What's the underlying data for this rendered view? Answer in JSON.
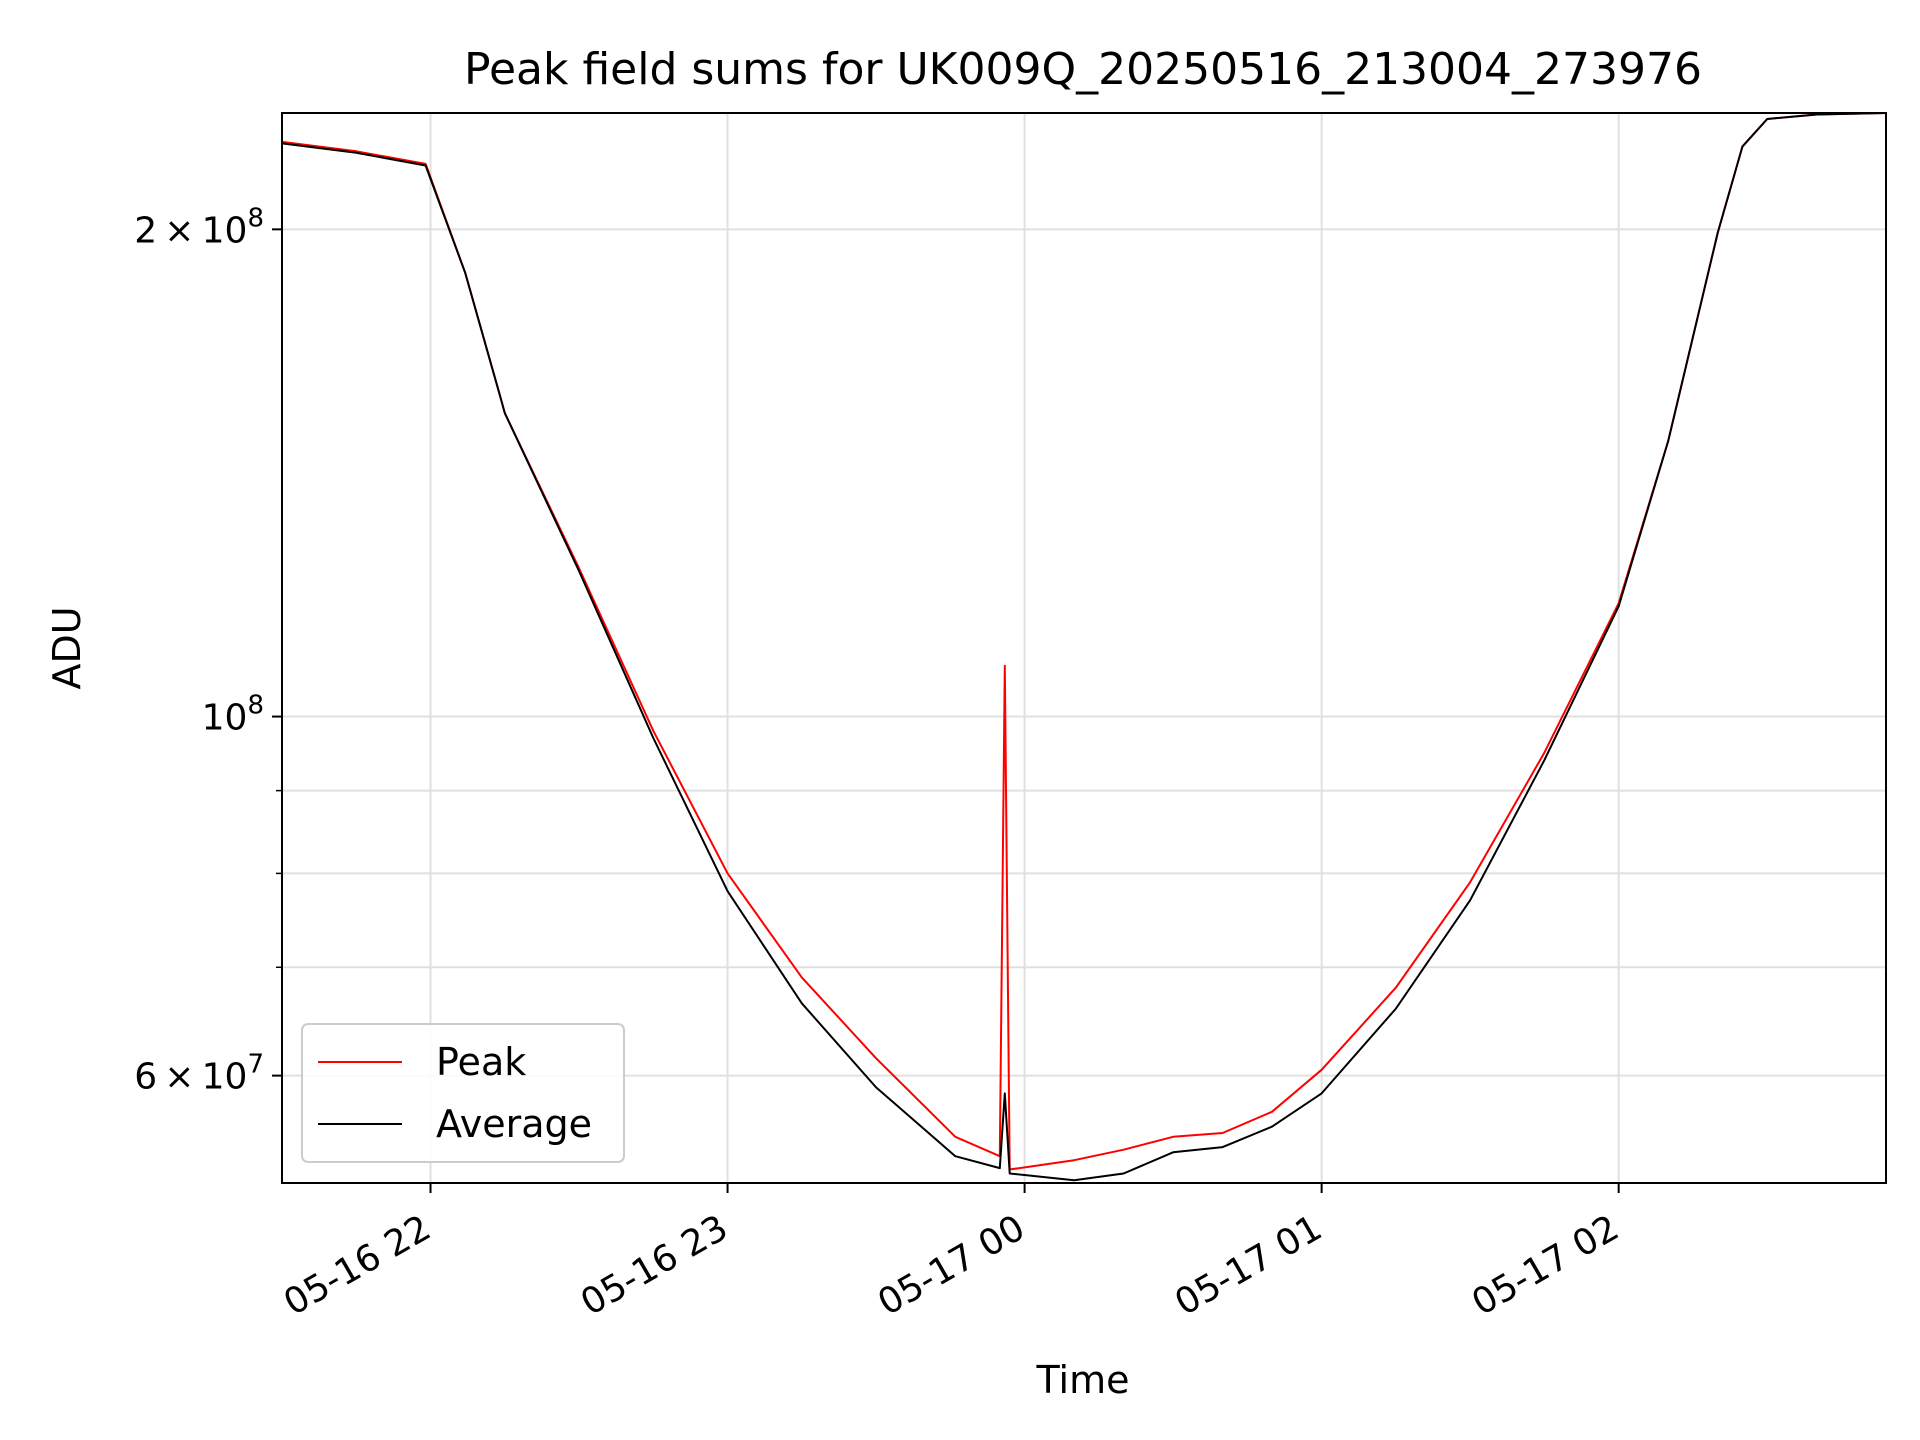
{
  "chart_data": {
    "type": "line",
    "title": "Peak field sums for UK009Q_20250516_213004_273976",
    "xlabel": "Time",
    "ylabel": "ADU",
    "y_scale": "log",
    "grid": true,
    "legend_placement": "lower-left",
    "xlim": [
      "2025-05-16 21:30",
      "2025-05-17 02:54"
    ],
    "ylim": [
      51500000,
      236000000
    ],
    "x_ticks": [
      {
        "t": "2025-05-16 22:00",
        "label": "05-16 22"
      },
      {
        "t": "2025-05-16 23:00",
        "label": "05-16 23"
      },
      {
        "t": "2025-05-17 00:00",
        "label": "05-17 00"
      },
      {
        "t": "2025-05-17 01:00",
        "label": "05-17 01"
      },
      {
        "t": "2025-05-17 02:00",
        "label": "05-17 02"
      }
    ],
    "y_major_ticks": [
      {
        "value": 60000000,
        "mant": "6",
        "exp": "7",
        "label": "6 × 10^7"
      },
      {
        "value": 100000000,
        "mant": "",
        "exp": "8",
        "label": "10^8"
      },
      {
        "value": 200000000,
        "mant": "2",
        "exp": "8",
        "label": "2 × 10^8"
      }
    ],
    "y_minor_ticks": [
      70000000,
      80000000,
      90000000
    ],
    "colors": {
      "peak": "#ff0000",
      "average": "#000000",
      "grid": "#e0e0e0"
    },
    "legend": [
      {
        "name": "Peak",
        "color": "#ff0000"
      },
      {
        "name": "Average",
        "color": "#000000"
      }
    ],
    "series": [
      {
        "name": "Average",
        "x": [
          "2025-05-16 21:30",
          "2025-05-16 21:45",
          "2025-05-16 21:59",
          "2025-05-16 22:07",
          "2025-05-16 22:14",
          "2025-05-16 22:15",
          "2025-05-16 22:30",
          "2025-05-16 22:45",
          "2025-05-16 23:00",
          "2025-05-16 23:15",
          "2025-05-16 23:30",
          "2025-05-16 23:46",
          "2025-05-16 23:55",
          "2025-05-16 23:56",
          "2025-05-16 23:57",
          "2025-05-17 00:10",
          "2025-05-17 00:20",
          "2025-05-17 00:30",
          "2025-05-17 00:40",
          "2025-05-17 00:50",
          "2025-05-17 01:00",
          "2025-05-17 01:15",
          "2025-05-17 01:30",
          "2025-05-17 01:45",
          "2025-05-17 02:00",
          "2025-05-17 02:10",
          "2025-05-17 02:20",
          "2025-05-17 02:25",
          "2025-05-17 02:30",
          "2025-05-17 02:40",
          "2025-05-17 02:54"
        ],
        "y": [
          226000000,
          223000000,
          219000000,
          188000000,
          158000000,
          154000000,
          123000000,
          97000000,
          78000000,
          66500000,
          59000000,
          53500000,
          52600000,
          58500000,
          52200000,
          51700000,
          52200000,
          53800000,
          54200000,
          55800000,
          58500000,
          66000000,
          77000000,
          94000000,
          117000000,
          148000000,
          199000000,
          225000000,
          234000000,
          235500000,
          236000000
        ]
      },
      {
        "name": "Peak",
        "x": [
          "2025-05-16 21:30",
          "2025-05-16 21:45",
          "2025-05-16 21:59",
          "2025-05-16 22:07",
          "2025-05-16 22:14",
          "2025-05-16 22:15",
          "2025-05-16 22:30",
          "2025-05-16 22:45",
          "2025-05-16 23:00",
          "2025-05-16 23:15",
          "2025-05-16 23:30",
          "2025-05-16 23:46",
          "2025-05-16 23:55",
          "2025-05-16 23:56",
          "2025-05-16 23:57",
          "2025-05-17 00:10",
          "2025-05-17 00:20",
          "2025-05-17 00:30",
          "2025-05-17 00:40",
          "2025-05-17 00:50",
          "2025-05-17 01:00",
          "2025-05-17 01:15",
          "2025-05-17 01:30",
          "2025-05-17 01:45",
          "2025-05-17 02:00",
          "2025-05-17 02:10",
          "2025-05-17 02:20",
          "2025-05-17 02:25",
          "2025-05-17 02:30",
          "2025-05-17 02:40",
          "2025-05-17 02:54"
        ],
        "y": [
          226500000,
          223500000,
          219500000,
          188000000,
          158000000,
          154000000,
          123500000,
          98000000,
          80000000,
          69000000,
          61500000,
          55000000,
          53500000,
          107500000,
          52500000,
          53200000,
          54000000,
          55000000,
          55300000,
          57000000,
          60500000,
          68000000,
          79000000,
          95000000,
          117500000,
          148000000,
          199000000,
          225000000,
          234000000,
          235500000,
          236000000
        ]
      }
    ]
  }
}
